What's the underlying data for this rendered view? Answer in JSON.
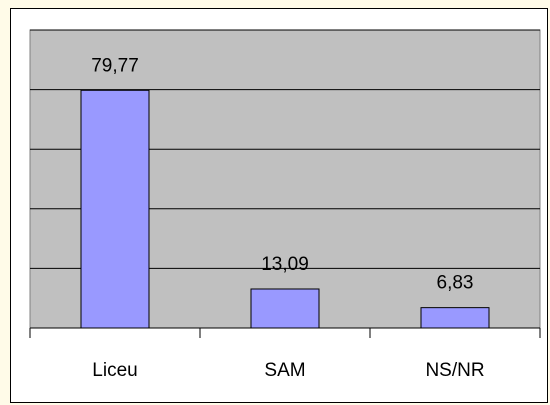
{
  "chart_data": {
    "type": "bar",
    "categories": [
      "Liceu",
      "SAM",
      "NS/NR"
    ],
    "values": [
      79.77,
      13.09,
      6.83
    ],
    "value_labels": [
      "79,77",
      "13,09",
      "6,83"
    ],
    "color": "#9999ff",
    "ylim": [
      0,
      100
    ],
    "yticks": [
      0,
      20,
      40,
      60,
      80,
      100
    ],
    "grid": true
  }
}
